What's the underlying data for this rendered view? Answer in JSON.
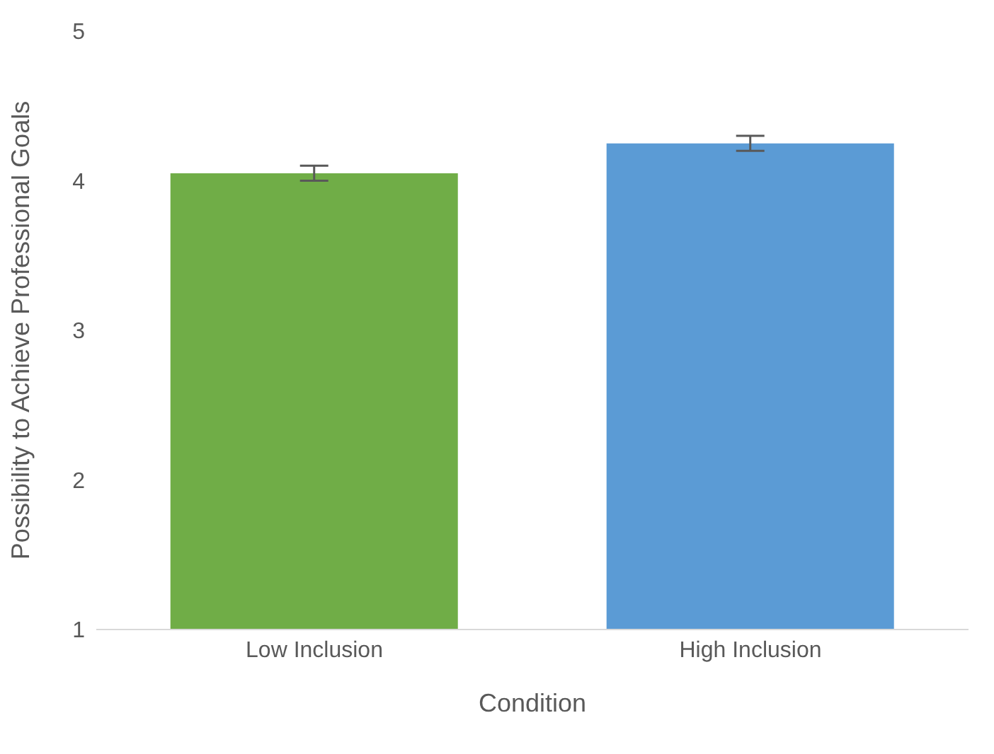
{
  "chart_data": {
    "type": "bar",
    "xlabel": "Condition",
    "ylabel": "Possibility to Achieve Professional Goals",
    "categories": [
      "Low Inclusion",
      "High Inclusion"
    ],
    "values": [
      4.05,
      4.25
    ],
    "colors": [
      "#70ad47",
      "#5b9bd5"
    ],
    "errors": [
      0.05,
      0.05
    ],
    "ylim": [
      1,
      5
    ],
    "yticks": [
      1,
      2,
      3,
      4,
      5
    ],
    "grid": false
  }
}
